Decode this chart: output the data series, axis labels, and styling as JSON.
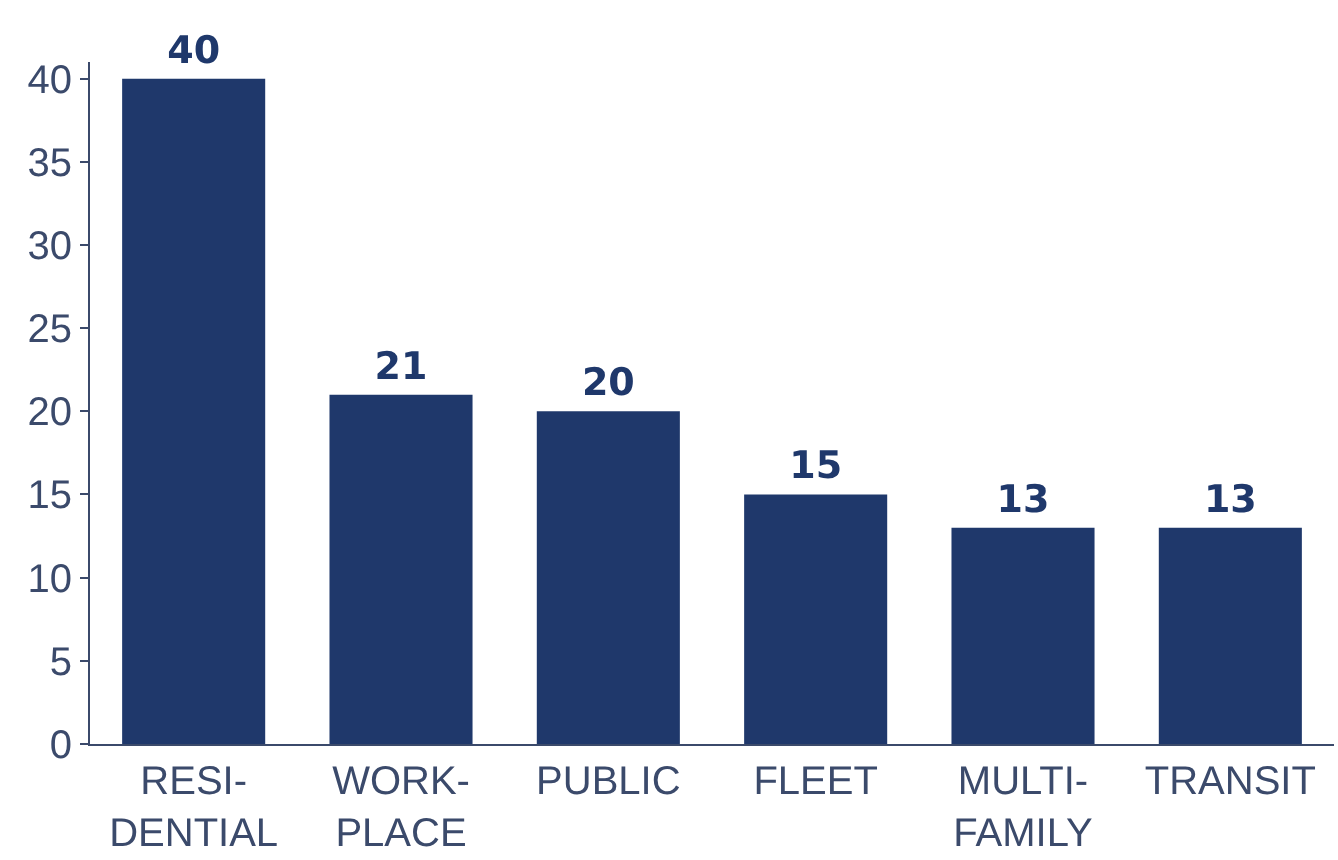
{
  "chart_data": {
    "type": "bar",
    "categories": [
      "RESI-\nDENTIAL",
      "WORK-\nPLACE",
      "PUBLIC",
      "FLEET",
      "MULTI-\nFAMILY",
      "TRANSIT"
    ],
    "values": [
      40,
      21,
      20,
      15,
      13,
      13
    ],
    "color": "#1f386b",
    "ylim": [
      0,
      41
    ],
    "yticks": [
      0,
      5,
      10,
      15,
      20,
      25,
      30,
      35,
      40
    ],
    "data_labels": true
  }
}
